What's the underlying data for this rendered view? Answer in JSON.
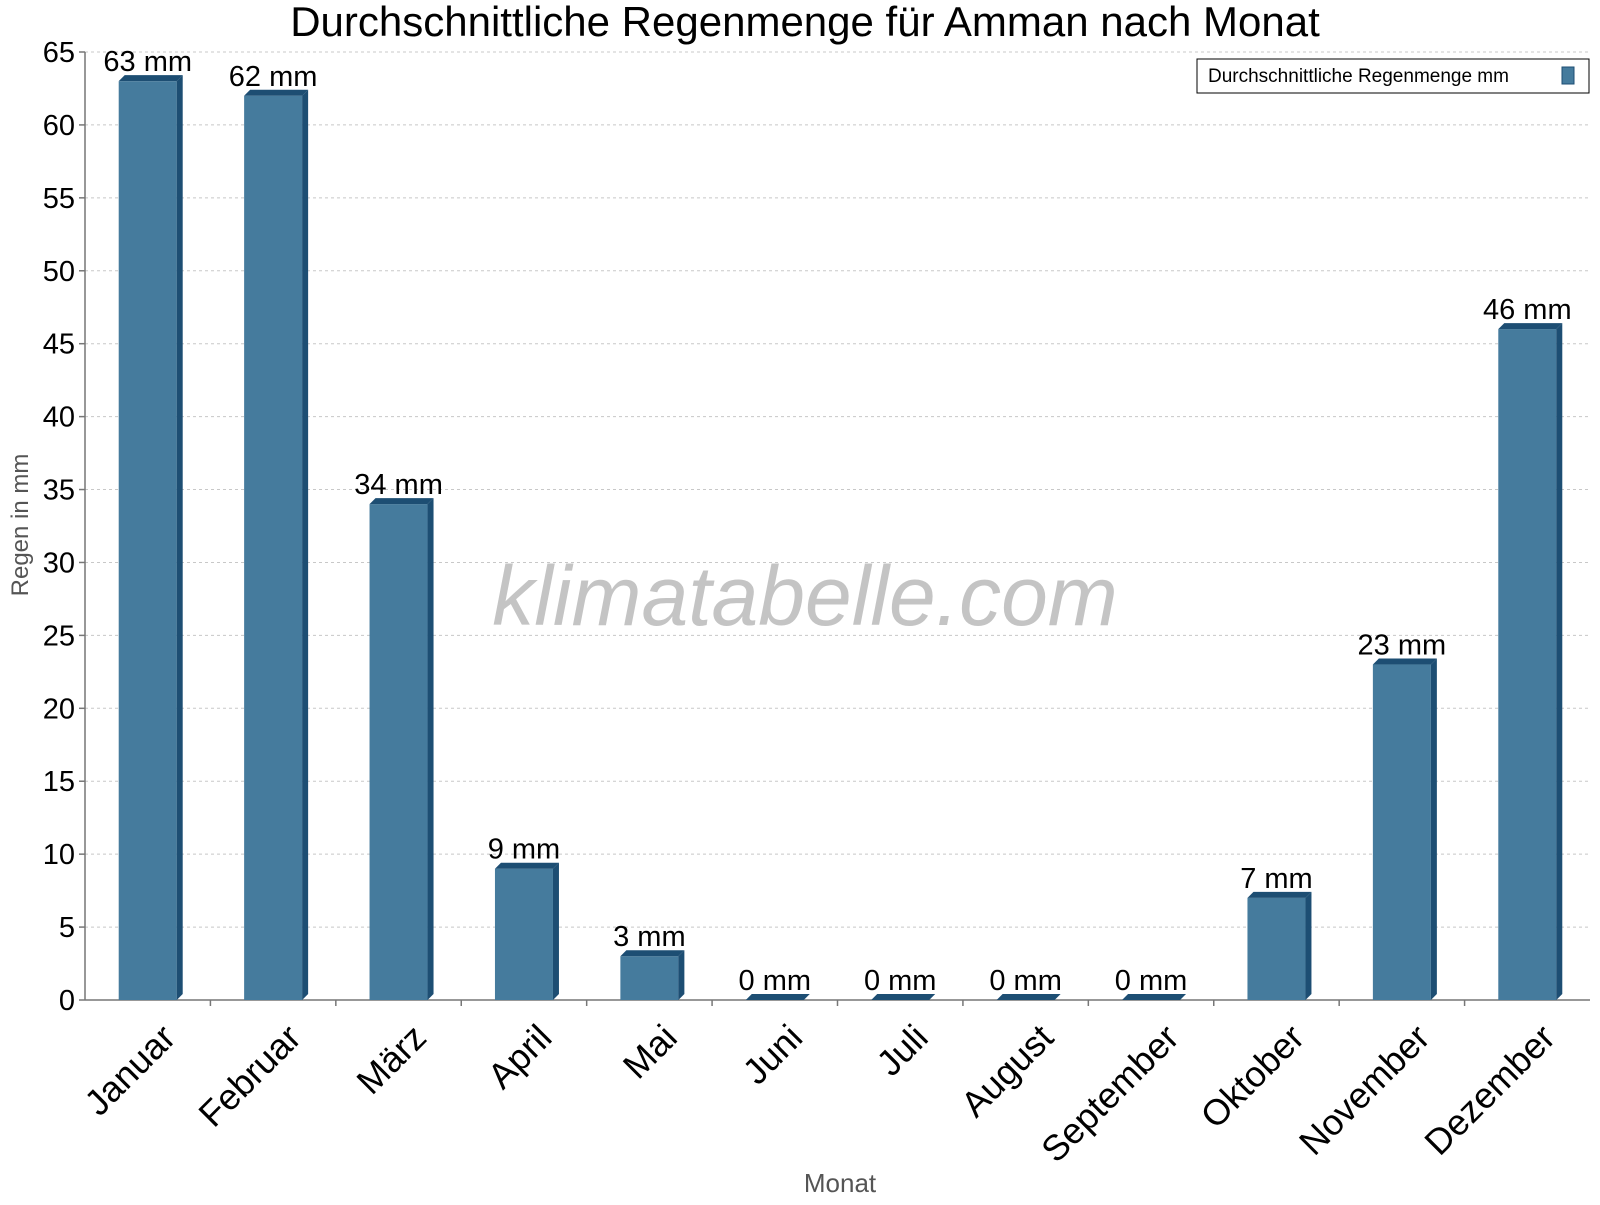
{
  "chart_data": {
    "type": "bar",
    "title": "Durchschnittliche Regenmenge für Amman nach Monat",
    "xlabel": "Monat",
    "ylabel": "Regen in mm",
    "categories": [
      "Januar",
      "Februar",
      "März",
      "April",
      "Mai",
      "Juni",
      "Juli",
      "August",
      "September",
      "Oktober",
      "November",
      "Dezember"
    ],
    "series": [
      {
        "name": "Durchschnittliche Regenmenge mm",
        "values": [
          63,
          62,
          34,
          9,
          3,
          0,
          0,
          0,
          0,
          7,
          23,
          46
        ],
        "labels": [
          "63 mm",
          "62 mm",
          "34 mm",
          "9 mm",
          "3 mm",
          "0 mm",
          "0 mm",
          "0 mm",
          "0 mm",
          "7 mm",
          "23 mm",
          "46 mm"
        ],
        "color": "#457b9d",
        "edge_color": "#1d4e73"
      }
    ],
    "ylim": [
      0,
      65
    ],
    "yticks": [
      0,
      5,
      10,
      15,
      20,
      25,
      30,
      35,
      40,
      45,
      50,
      55,
      60,
      65
    ],
    "grid": true,
    "legend": "top-right",
    "watermark": "klimatabelle.com"
  }
}
